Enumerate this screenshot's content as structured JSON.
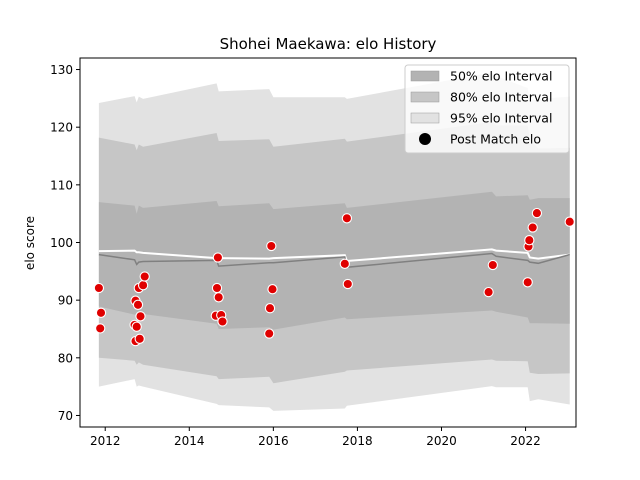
{
  "chart_data": {
    "type": "scatter",
    "title": "Shohei Maekawa: elo History",
    "xlabel": "",
    "ylabel": "elo score",
    "xlim": [
      2011.4,
      2023.2
    ],
    "ylim": [
      68,
      132
    ],
    "xticks": [
      2012,
      2014,
      2016,
      2018,
      2020,
      2022
    ],
    "yticks": [
      70,
      80,
      90,
      100,
      110,
      120,
      130
    ],
    "grid": false,
    "legend_position": "top-right",
    "legend": [
      {
        "label": "50% elo Interval",
        "color": "#b3b3b3",
        "kind": "band"
      },
      {
        "label": "80% elo Interval",
        "color": "#c6c6c6",
        "kind": "band"
      },
      {
        "label": "95% elo Interval",
        "color": "#e2e2e2",
        "kind": "band"
      },
      {
        "label": "Post Match elo",
        "color": "#000000",
        "kind": "dot"
      }
    ],
    "bands": {
      "x": [
        2011.85,
        2012.7,
        2012.75,
        2012.8,
        2012.9,
        2014.65,
        2014.7,
        2015.9,
        2016.0,
        2017.7,
        2017.75,
        2021.2,
        2021.3,
        2022.05,
        2022.1,
        2022.3,
        2023.05
      ],
      "b95": {
        "upper": [
          124.2,
          125.4,
          124.3,
          125.3,
          124.9,
          127.6,
          126.2,
          126.6,
          125.2,
          125.2,
          124.9,
          129.5,
          128.9,
          126.8,
          124.5,
          124.9,
          125.3
        ],
        "lower": [
          75.0,
          76.3,
          75.0,
          75.2,
          75.0,
          72.0,
          71.8,
          71.4,
          70.8,
          71.2,
          71.7,
          75.1,
          74.9,
          74.9,
          72.5,
          72.8,
          71.9
        ]
      },
      "b80": {
        "upper": [
          118.2,
          117.0,
          116.0,
          117.0,
          116.6,
          119.0,
          117.6,
          117.9,
          116.6,
          118.0,
          117.5,
          120.9,
          120.3,
          120.3,
          118.0,
          116.3,
          116.4
        ],
        "lower": [
          80.0,
          79.5,
          78.8,
          79.2,
          78.8,
          76.8,
          76.3,
          76.7,
          75.6,
          77.6,
          77.8,
          79.7,
          79.5,
          79.4,
          77.4,
          77.2,
          77.3
        ]
      },
      "b50": {
        "upper": [
          107.0,
          106.4,
          105.0,
          106.4,
          106.0,
          107.2,
          106.3,
          106.8,
          105.8,
          106.8,
          106.0,
          108.8,
          108.0,
          108.2,
          107.4,
          107.7,
          107.7
        ],
        "lower": [
          88.9,
          87.5,
          87.4,
          87.2,
          87.6,
          85.9,
          85.0,
          85.3,
          84.9,
          87.0,
          86.7,
          88.2,
          88.0,
          87.0,
          86.0,
          86.0,
          85.9
        ]
      },
      "mean": [
        97.9,
        97.0,
        96.2,
        96.6,
        96.7,
        96.9,
        95.9,
        96.5,
        96.5,
        97.5,
        95.7,
        98.1,
        97.6,
        96.9,
        96.6,
        96.4,
        97.9
      ],
      "mean_upper": [
        98.5,
        98.6,
        98.3,
        98.3,
        98.2,
        97.3,
        97.3,
        97.2,
        97.3,
        97.8,
        96.8,
        98.8,
        98.6,
        98.2,
        97.4,
        97.2,
        97.9
      ]
    },
    "points": [
      {
        "x": 2011.85,
        "y": 92.1
      },
      {
        "x": 2011.88,
        "y": 85.1
      },
      {
        "x": 2011.9,
        "y": 87.8
      },
      {
        "x": 2012.7,
        "y": 85.7
      },
      {
        "x": 2012.72,
        "y": 89.9
      },
      {
        "x": 2012.72,
        "y": 82.9
      },
      {
        "x": 2012.75,
        "y": 85.4
      },
      {
        "x": 2012.78,
        "y": 89.2
      },
      {
        "x": 2012.8,
        "y": 92.1
      },
      {
        "x": 2012.82,
        "y": 83.3
      },
      {
        "x": 2012.84,
        "y": 87.2
      },
      {
        "x": 2012.9,
        "y": 92.6
      },
      {
        "x": 2012.94,
        "y": 94.1
      },
      {
        "x": 2014.63,
        "y": 87.3
      },
      {
        "x": 2014.66,
        "y": 92.1
      },
      {
        "x": 2014.68,
        "y": 97.4
      },
      {
        "x": 2014.7,
        "y": 90.5
      },
      {
        "x": 2014.76,
        "y": 87.4
      },
      {
        "x": 2014.79,
        "y": 86.3
      },
      {
        "x": 2015.9,
        "y": 84.2
      },
      {
        "x": 2015.92,
        "y": 88.6
      },
      {
        "x": 2015.95,
        "y": 99.4
      },
      {
        "x": 2015.98,
        "y": 91.9
      },
      {
        "x": 2017.7,
        "y": 96.3
      },
      {
        "x": 2017.75,
        "y": 104.2
      },
      {
        "x": 2017.77,
        "y": 92.8
      },
      {
        "x": 2021.12,
        "y": 91.4
      },
      {
        "x": 2021.22,
        "y": 96.1
      },
      {
        "x": 2022.05,
        "y": 93.1
      },
      {
        "x": 2022.07,
        "y": 99.3
      },
      {
        "x": 2022.09,
        "y": 100.4
      },
      {
        "x": 2022.17,
        "y": 102.6
      },
      {
        "x": 2022.27,
        "y": 105.1
      },
      {
        "x": 2023.05,
        "y": 103.6
      }
    ],
    "colors": {
      "point_fill": "#e00000",
      "point_edge": "#ffffff",
      "mean_line": "#808080",
      "mean_upper_line": "#ffffff"
    }
  }
}
